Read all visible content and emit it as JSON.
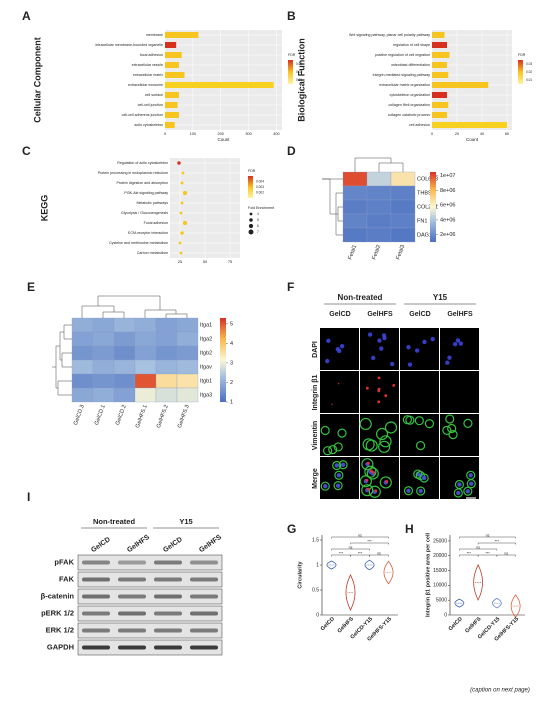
{
  "A": {
    "letter": "A",
    "ylabel": "Cellular Component",
    "xlabel": "Count",
    "terms": [
      "membrane",
      "intracellular membrane-bounded organelle",
      "focal adhesion",
      "extracellular vesicle",
      "extracellular matrix",
      "extracellular exosome",
      "cell surface",
      "cell-cell junction",
      "cell-cell adherens junction",
      "actin cytoskeleton"
    ],
    "values": [
      120,
      40,
      60,
      50,
      70,
      390,
      50,
      45,
      50,
      35
    ],
    "colors": [
      "#f7c520",
      "#d7301f",
      "#f7c520",
      "#f7c520",
      "#f7c520",
      "#f7d020",
      "#f7c520",
      "#f7c520",
      "#f7c520",
      "#f7c520"
    ],
    "xlim": [
      0,
      420
    ],
    "xticks": [
      0,
      100,
      200,
      300,
      400
    ],
    "legend_title": "FDR",
    "legend_lim": [
      0.005,
      0.035
    ],
    "legend_ticks": [
      0.01,
      0.02,
      0.03
    ]
  },
  "B": {
    "letter": "B",
    "ylabel": "Biological Function",
    "xlabel": "Count",
    "terms": [
      "Wnt signaling pathway, planar cell polarity pathway",
      "regulation of cell shape",
      "positive regulation of cell migration",
      "osteoblast differentiation",
      "integrin-mediated signaling pathway",
      "extracellular matrix organization",
      "cytoskeleton organization",
      "collagen fibril organization",
      "collagen catabolic process",
      "cell adhesion"
    ],
    "values": [
      10,
      12,
      14,
      12,
      13,
      45,
      12,
      13,
      12,
      60
    ],
    "colors": [
      "#f7c520",
      "#d7301f",
      "#f7c520",
      "#f7c520",
      "#f7c520",
      "#f7c520",
      "#d7301f",
      "#f7c520",
      "#f7c520",
      "#f7d020"
    ],
    "xlim": [
      0,
      64
    ],
    "xticks": [
      0,
      20,
      40,
      60
    ],
    "legend_title": "FDR",
    "legend_lim": [
      0.005,
      0.035
    ],
    "legend_ticks": [
      0.01,
      0.02,
      0.03
    ]
  },
  "C": {
    "letter": "C",
    "ylabel": "KEGG",
    "terms": [
      "Regulation of actin cytoskeleton",
      "Protein processing in endoplasmic reticulum",
      "Protein digestion and absorption",
      "PI3K-Akt signaling pathway",
      "Metabolic pathways",
      "Glycolysis / Gluconeogenesis",
      "Focal adhesion",
      "ECM-receptor interaction",
      "Cysteine and methionine metabolism",
      "Carbon metabolism"
    ],
    "values": [
      24,
      28,
      27,
      30,
      27,
      26,
      30,
      27,
      25,
      26
    ],
    "sizes": [
      5,
      4,
      4,
      6,
      4,
      4,
      6,
      5,
      4,
      4
    ],
    "colors": [
      "#d7301f",
      "#f7c520",
      "#f7c520",
      "#f7c520",
      "#f7c520",
      "#f7c520",
      "#f7c520",
      "#f7c520",
      "#f7c520",
      "#f7c520"
    ],
    "xlim": [
      15,
      85
    ],
    "xticks": [
      25,
      50,
      75
    ],
    "legend_title": "FDR",
    "legend_lim": [
      0.001,
      0.005
    ],
    "legend_ticks": [
      0.002,
      0.003,
      0.004
    ],
    "size_title": "Fold Enrichment",
    "size_legend": [
      4,
      5,
      6,
      7
    ]
  },
  "D": {
    "letter": "D",
    "rows": [
      "COL6A3",
      "THBS2",
      "COL2A1",
      "FN1",
      "DAG1"
    ],
    "cols": [
      "Fetal1",
      "Fetal2",
      "Fetal3"
    ],
    "values": [
      [
        10000000,
        4500000,
        6500000
      ],
      [
        1800000,
        1700000,
        1600000
      ],
      [
        1500000,
        1600000,
        1400000
      ],
      [
        1700000,
        1500000,
        1600000
      ],
      [
        1400000,
        1500000,
        1300000
      ]
    ],
    "clim": [
      1000000,
      10500000
    ],
    "cticks": [
      {
        "value": 10000000,
        "label": "1e+07"
      },
      {
        "value": 8000000,
        "label": "8e+06"
      },
      {
        "value": 6000000,
        "label": "6e+06"
      },
      {
        "value": 4000000,
        "label": "4e+06"
      },
      {
        "value": 2000000,
        "label": "2e+06"
      }
    ]
  },
  "E": {
    "letter": "E",
    "rows": [
      "Itga1",
      "Itga2",
      "Itgb2",
      "Itgav",
      "Itgb1",
      "Itga3"
    ],
    "cols": [
      "GelCD.3",
      "GelCD.1",
      "GelCD.2",
      "GelHFS.1",
      "GelHFS.2",
      "GelHFS.3"
    ],
    "values": [
      [
        2.0,
        1.9,
        2.1,
        2.0,
        1.8,
        1.9
      ],
      [
        1.8,
        1.9,
        1.7,
        1.9,
        1.8,
        2.0
      ],
      [
        1.6,
        1.7,
        1.5,
        1.8,
        1.6,
        1.7
      ],
      [
        2.2,
        2.0,
        2.1,
        2.3,
        2.1,
        2.2
      ],
      [
        1.5,
        1.6,
        1.5,
        5.0,
        3.6,
        3.5
      ],
      [
        1.9,
        2.0,
        1.8,
        3.0,
        2.8,
        2.9
      ]
    ],
    "clim": [
      1,
      5.3
    ],
    "cticks": [
      1,
      2,
      3,
      4,
      5
    ]
  },
  "F": {
    "letter": "F",
    "groups": [
      "Non-treated",
      "Y15"
    ],
    "cols": [
      "GelCD",
      "GelHFS",
      "GelCD",
      "GelHFS"
    ],
    "rows": [
      "DAPI",
      "Integrin β1",
      "Vimentin",
      "Merge"
    ]
  },
  "G": {
    "letter": "G",
    "ylabel": "Circularity",
    "categories": [
      "GelCD",
      "GelHFS",
      "GelCD-Y15",
      "GelHFS-Y15"
    ],
    "values": [
      1.0,
      0.45,
      1.0,
      0.85
    ],
    "colors": [
      "#3a5fb0",
      "#c0392b",
      "#3a5fb0",
      "#d9603b"
    ],
    "ylim": [
      0,
      1.6
    ],
    "yticks": [
      0.0,
      0.5,
      1.0,
      1.5
    ],
    "brackets": [
      "ns",
      "***",
      "ns",
      "***",
      "***",
      "ns"
    ]
  },
  "H": {
    "letter": "H",
    "ylabel": "Integrin β1 positive area per cell",
    "categories": [
      "GelCD",
      "GelHFS",
      "GelCD-Y15",
      "GelHFS-Y15"
    ],
    "values": [
      4000,
      11000,
      4000,
      3000
    ],
    "colors": [
      "#3a5fb0",
      "#c0392b",
      "#6a7fd0",
      "#d9603b"
    ],
    "ylim": [
      0,
      27000
    ],
    "yticks": [
      0,
      5000,
      10000,
      15000,
      20000,
      25000
    ],
    "brackets": [
      "ns",
      "***",
      "ns",
      "***",
      "***",
      "ns"
    ]
  },
  "I": {
    "letter": "I",
    "groups": [
      "Non-treated",
      "Y15"
    ],
    "lanes": [
      "GelCD",
      "GelHFS",
      "GelCD",
      "GelHFS"
    ],
    "rows": [
      "pFAK",
      "FAK",
      "β-catenin",
      "pERK 1/2",
      "ERK 1/2",
      "GAPDH"
    ]
  },
  "caption": "(caption on next page)"
}
